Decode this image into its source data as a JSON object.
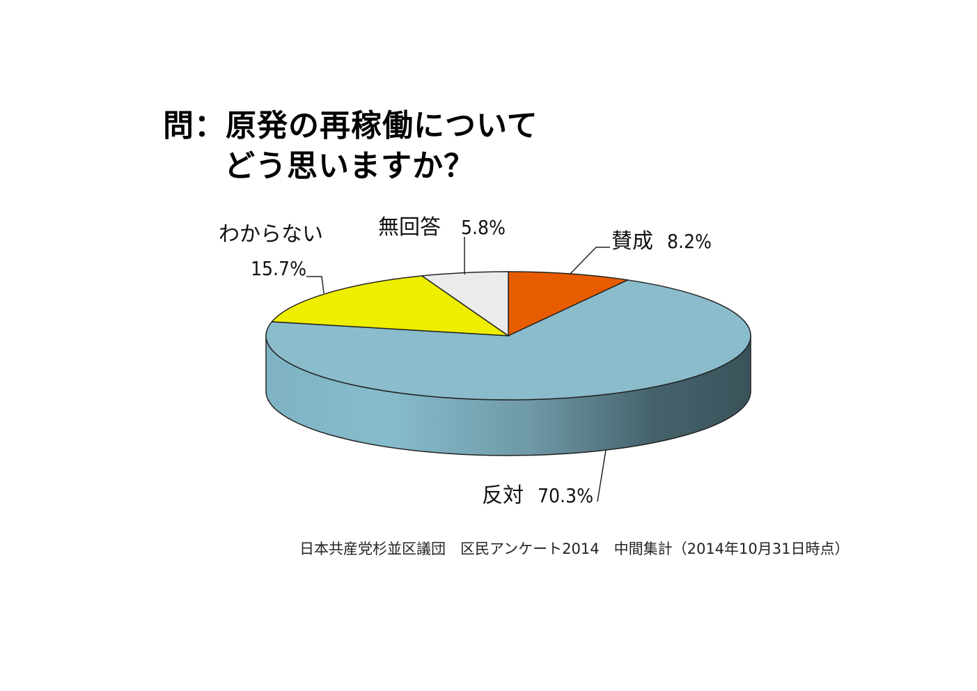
{
  "chart_data": {
    "type": "pie",
    "title_line1": "問：原発の再稼働について",
    "title_line2": "どう思いますか？",
    "slices": [
      {
        "label": "賛成",
        "value": 8.2,
        "value_label": "8.2%",
        "color": "#e85c00"
      },
      {
        "label": "反対",
        "value": 70.3,
        "value_label": "70.3%",
        "color": "#8bbccc"
      },
      {
        "label": "わからない",
        "value": 15.7,
        "value_label": "15.7%",
        "color": "#eeee00"
      },
      {
        "label": "無回答",
        "value": 5.8,
        "value_label": "5.8%",
        "color": "#ebebeb"
      }
    ],
    "style": "3d"
  },
  "footnote": "日本共産党杉並区議団　区民アンケート2014　中間集計（2014年10月31日時点）"
}
